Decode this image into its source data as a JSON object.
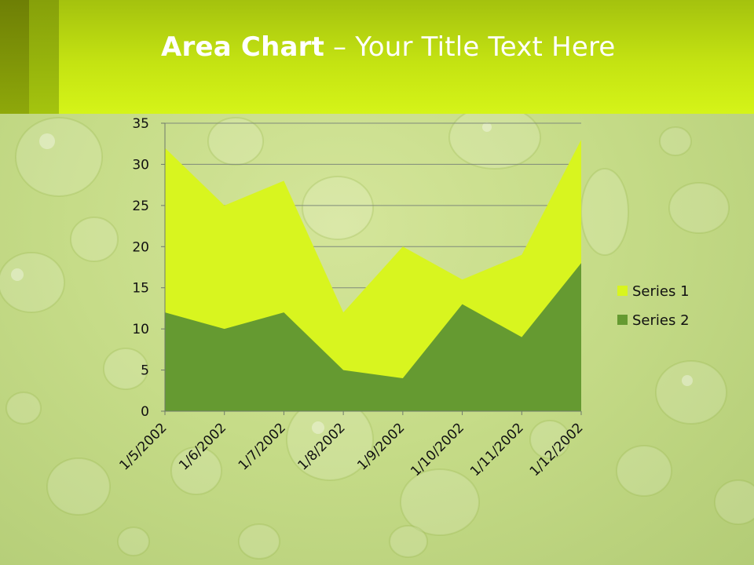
{
  "slide": {
    "title_bold": "Area Chart",
    "title_rest": " – Your Title Text Here"
  },
  "colors": {
    "series1": "#d8f51f",
    "series2": "#659a31",
    "header": "#c8e815"
  },
  "chart_data": {
    "type": "area",
    "stacked": true,
    "categories": [
      "1/5/2002",
      "1/6/2002",
      "1/7/2002",
      "1/8/2002",
      "1/9/2002",
      "1/10/2002",
      "1/11/2002",
      "1/12/2002"
    ],
    "series": [
      {
        "name": "Series 1",
        "values": [
          20,
          15,
          16,
          7,
          16,
          3,
          10,
          15
        ]
      },
      {
        "name": "Series 2",
        "values": [
          12,
          10,
          12,
          5,
          4,
          13,
          9,
          18
        ]
      }
    ],
    "yticks": [
      0,
      5,
      10,
      15,
      20,
      25,
      30,
      35
    ],
    "ylim": [
      0,
      35
    ],
    "grid": true,
    "legend_position": "right"
  }
}
